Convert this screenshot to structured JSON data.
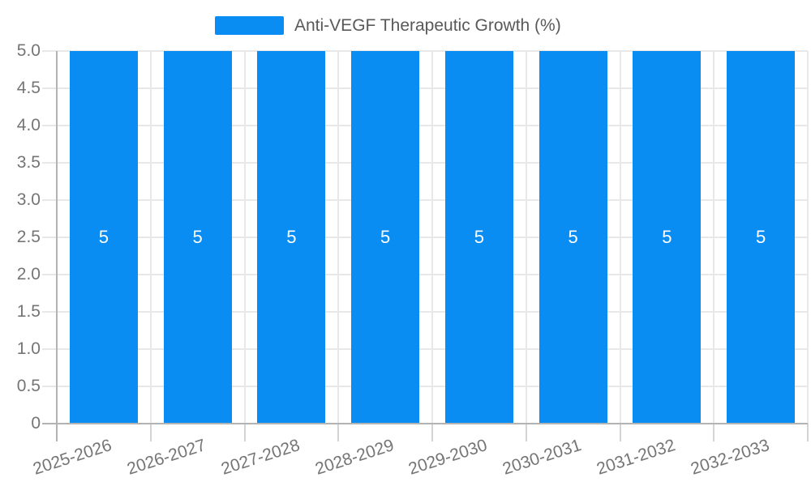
{
  "legend": {
    "label": "Anti-VEGF Therapeutic Growth (%)"
  },
  "chart_data": {
    "type": "bar",
    "title": "Anti-VEGF Therapeutic Growth (%)",
    "categories": [
      "2025-2026",
      "2026-2027",
      "2027-2028",
      "2028-2029",
      "2029-2030",
      "2030-2031",
      "2031-2032",
      "2032-2033"
    ],
    "series": [
      {
        "name": "Anti-VEGF Therapeutic Growth (%)",
        "values": [
          5,
          5,
          5,
          5,
          5,
          5,
          5,
          5
        ]
      }
    ],
    "value_labels": [
      "5",
      "5",
      "5",
      "5",
      "5",
      "5",
      "5",
      "5"
    ],
    "xlabel": "",
    "ylabel": "",
    "ylim": [
      0,
      5
    ],
    "ytick_values": [
      0,
      0.5,
      1.0,
      1.5,
      2.0,
      2.5,
      3.0,
      3.5,
      4.0,
      4.5,
      5.0
    ],
    "ytick_labels": [
      "0",
      "0.5",
      "1.0",
      "1.5",
      "2.0",
      "2.5",
      "3.0",
      "3.5",
      "4.0",
      "4.5",
      "5.0"
    ],
    "grid": true,
    "legend_position": "top-center",
    "x_label_rotation_deg": -18,
    "colors": {
      "bar": "#0a8df3",
      "grid_line": "#e8e8e8",
      "axis_line": "#b3b3b3",
      "tick_line": "#d4d4d4",
      "axis_label": "#757575",
      "legend_text": "#595959",
      "value_label": "#ffffff"
    }
  }
}
